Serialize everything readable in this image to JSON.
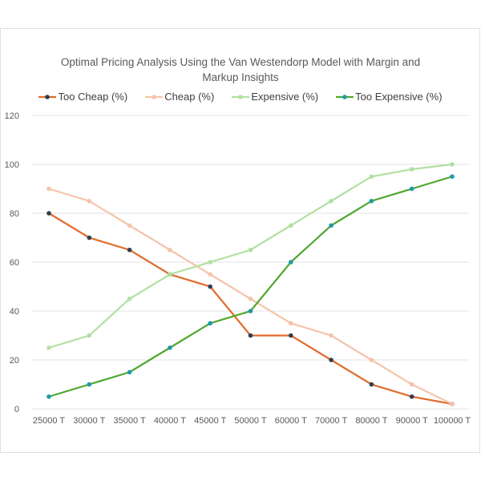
{
  "chart_data": {
    "type": "line",
    "title": "Optimal Pricing Analysis Using the Van Westendorp Model with Margin and Markup Insights",
    "categories": [
      "25000 T",
      "30000 T",
      "35000 T",
      "40000 T",
      "45000 T",
      "50000 T",
      "60000 T",
      "70000 T",
      "80000 T",
      "90000 T",
      "100000 T"
    ],
    "ylim": [
      0,
      120
    ],
    "yticks": [
      "0",
      "20",
      "40",
      "60",
      "80",
      "100",
      "120"
    ],
    "grid": true,
    "legend_position": "top",
    "series": [
      {
        "name": "Too Cheap (%)",
        "color": "#e06c2c",
        "marker": "#2f3f4f",
        "values": [
          80,
          70,
          65,
          55,
          50,
          30,
          30,
          20,
          10,
          5,
          2
        ]
      },
      {
        "name": "Cheap (%)",
        "color": "#f5c4aa",
        "marker": "#f5c4aa",
        "values": [
          90,
          85,
          75,
          65,
          55,
          45,
          35,
          30,
          20,
          10,
          2
        ]
      },
      {
        "name": "Expensive (%)",
        "color": "#b2e0a2",
        "marker": "#b2e0a2",
        "values": [
          25,
          30,
          45,
          55,
          60,
          65,
          75,
          85,
          95,
          98,
          100
        ]
      },
      {
        "name": "Too Expensive (%)",
        "color": "#4ea72e",
        "marker": "#1f9aa8",
        "values": [
          5,
          10,
          15,
          25,
          35,
          40,
          60,
          75,
          85,
          90,
          95
        ]
      }
    ]
  }
}
